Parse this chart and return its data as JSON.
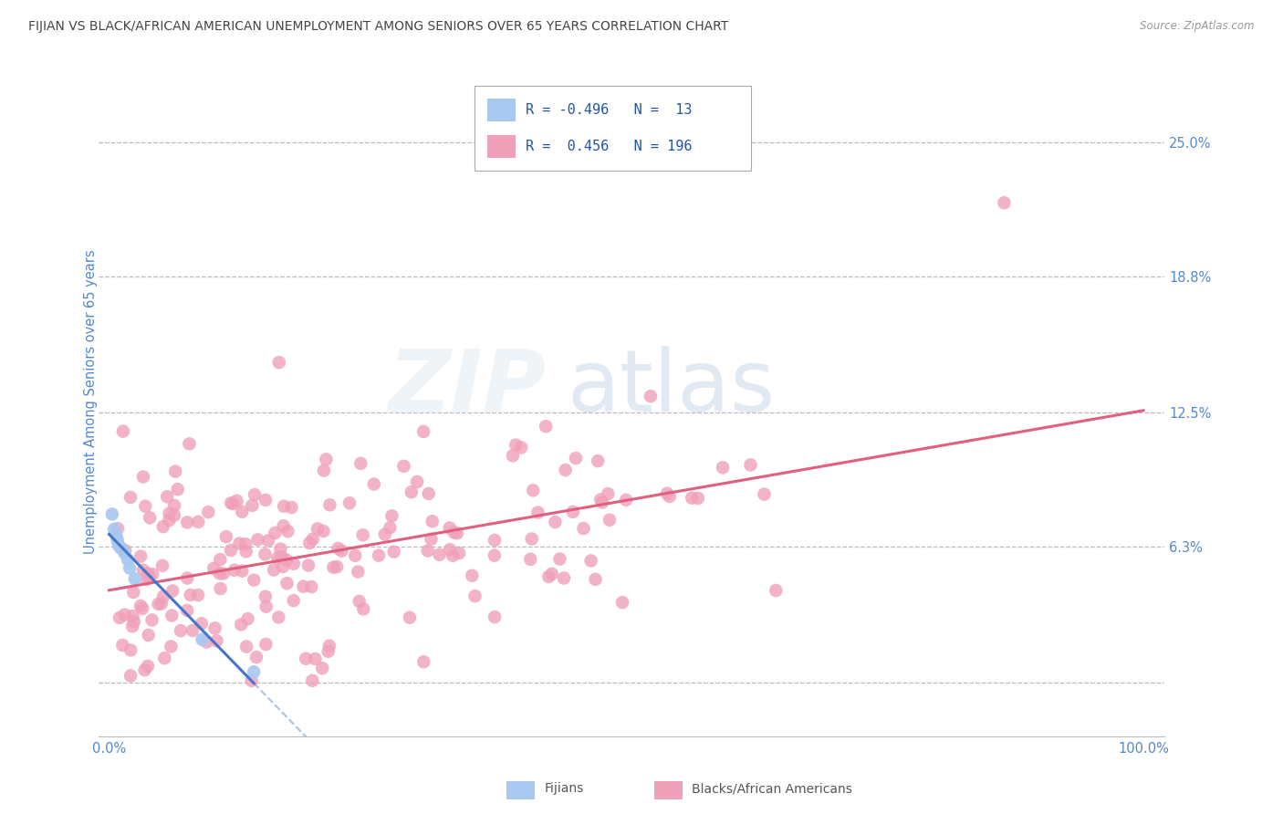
{
  "title": "FIJIAN VS BLACK/AFRICAN AMERICAN UNEMPLOYMENT AMONG SENIORS OVER 65 YEARS CORRELATION CHART",
  "source": "Source: ZipAtlas.com",
  "ylabel": "Unemployment Among Seniors over 65 years",
  "watermark_zip": "ZIP",
  "watermark_atlas": "atlas",
  "legend_r_fijian": "-0.496",
  "legend_n_fijian": "13",
  "legend_r_black": "0.456",
  "legend_n_black": "196",
  "fijian_color": "#a8c8f0",
  "black_color": "#f0a0b8",
  "fijian_line_color": "#4477cc",
  "black_line_color": "#e06080",
  "title_color": "#444444",
  "axis_label_color": "#5588cc",
  "tick_color": "#5588cc",
  "grid_color": "#bbbbbb",
  "background_color": "#ffffff",
  "ytick_vals": [
    0.0,
    0.063,
    0.125,
    0.188,
    0.25
  ],
  "ytick_labels": [
    "",
    "6.3%",
    "12.5%",
    "18.8%",
    "25.0%"
  ],
  "xlim": [
    -0.01,
    1.02
  ],
  "ylim": [
    -0.025,
    0.285
  ]
}
